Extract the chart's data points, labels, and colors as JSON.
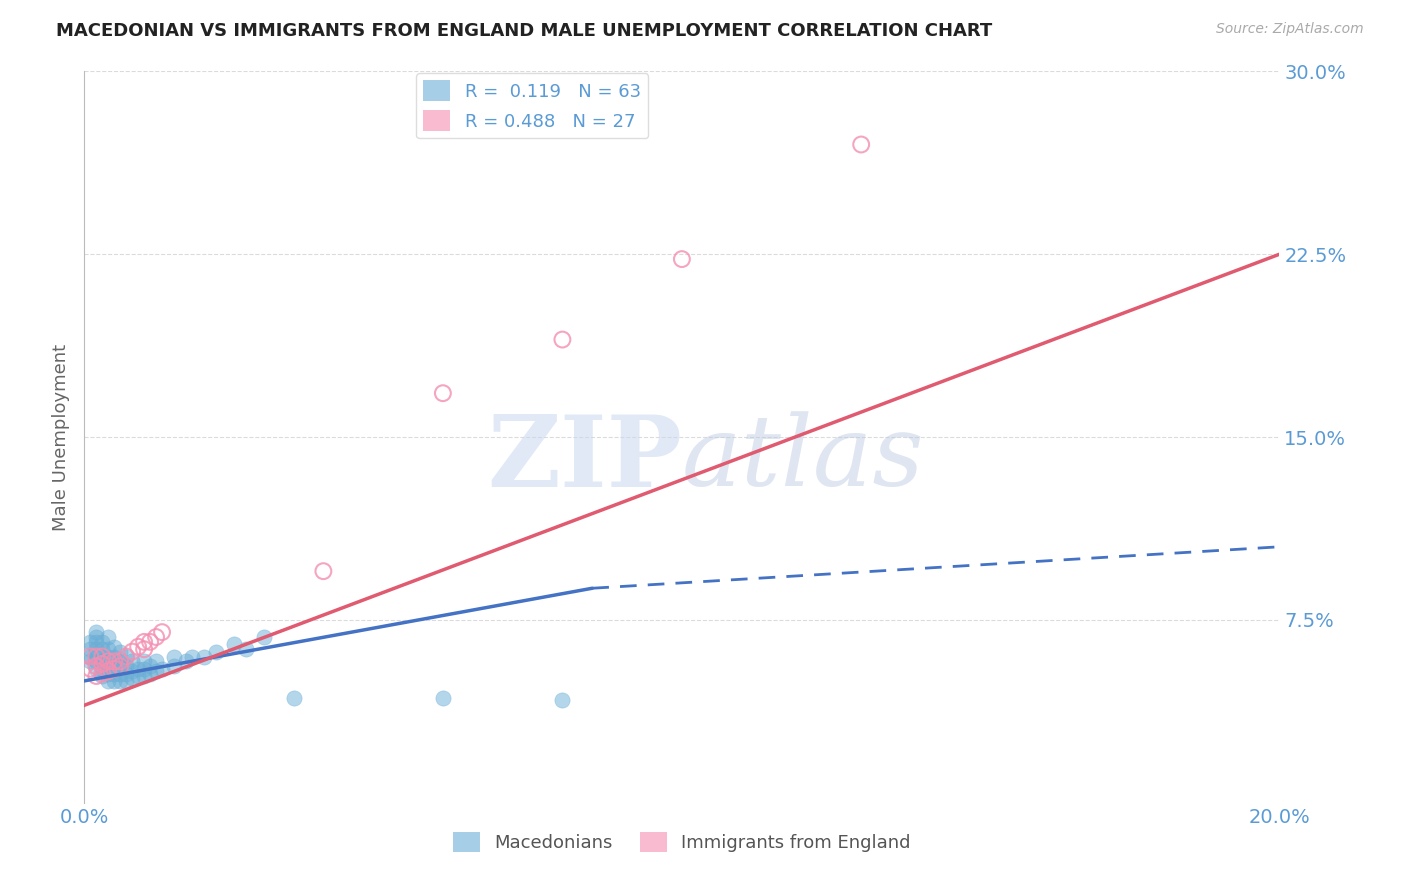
{
  "title": "MACEDONIAN VS IMMIGRANTS FROM ENGLAND MALE UNEMPLOYMENT CORRELATION CHART",
  "source_text": "Source: ZipAtlas.com",
  "ylabel": "Male Unemployment",
  "xlim": [
    0.0,
    0.2
  ],
  "ylim": [
    0.0,
    0.3
  ],
  "macedonian_scatter_color": "#6baed6",
  "england_scatter_color": "#f48fb1",
  "macedonian_line_color": "#4472c4",
  "england_line_color": "#e05a70",
  "title_color": "#222222",
  "axis_label_color": "#5b9bd5",
  "grid_color": "#cccccc",
  "watermark_text": "ZIPAtlas",
  "watermark_color": "#d0dff0",
  "background_color": "#ffffff",
  "macedonian_x": [
    0.001,
    0.001,
    0.001,
    0.001,
    0.002,
    0.002,
    0.002,
    0.002,
    0.002,
    0.002,
    0.002,
    0.003,
    0.003,
    0.003,
    0.003,
    0.003,
    0.003,
    0.004,
    0.004,
    0.004,
    0.004,
    0.004,
    0.004,
    0.005,
    0.005,
    0.005,
    0.005,
    0.005,
    0.005,
    0.006,
    0.006,
    0.006,
    0.006,
    0.006,
    0.007,
    0.007,
    0.007,
    0.007,
    0.008,
    0.008,
    0.008,
    0.009,
    0.009,
    0.01,
    0.01,
    0.01,
    0.011,
    0.011,
    0.012,
    0.012,
    0.013,
    0.015,
    0.015,
    0.017,
    0.018,
    0.02,
    0.022,
    0.025,
    0.027,
    0.03,
    0.035,
    0.06,
    0.08
  ],
  "macedonian_y": [
    0.058,
    0.06,
    0.063,
    0.066,
    0.055,
    0.058,
    0.06,
    0.063,
    0.066,
    0.068,
    0.07,
    0.052,
    0.055,
    0.058,
    0.06,
    0.063,
    0.066,
    0.05,
    0.053,
    0.056,
    0.06,
    0.063,
    0.068,
    0.05,
    0.053,
    0.056,
    0.058,
    0.06,
    0.064,
    0.05,
    0.053,
    0.056,
    0.058,
    0.062,
    0.05,
    0.053,
    0.056,
    0.06,
    0.051,
    0.054,
    0.058,
    0.052,
    0.055,
    0.052,
    0.055,
    0.058,
    0.053,
    0.056,
    0.054,
    0.058,
    0.055,
    0.056,
    0.06,
    0.058,
    0.06,
    0.06,
    0.062,
    0.065,
    0.063,
    0.068,
    0.043,
    0.043,
    0.042
  ],
  "england_x": [
    0.001,
    0.001,
    0.002,
    0.002,
    0.002,
    0.003,
    0.003,
    0.003,
    0.004,
    0.004,
    0.005,
    0.005,
    0.006,
    0.006,
    0.007,
    0.008,
    0.009,
    0.01,
    0.01,
    0.011,
    0.012,
    0.013,
    0.04,
    0.06,
    0.08,
    0.1,
    0.13
  ],
  "england_y": [
    0.055,
    0.06,
    0.052,
    0.056,
    0.06,
    0.053,
    0.057,
    0.06,
    0.054,
    0.058,
    0.055,
    0.058,
    0.056,
    0.058,
    0.06,
    0.062,
    0.064,
    0.063,
    0.066,
    0.066,
    0.068,
    0.07,
    0.095,
    0.168,
    0.19,
    0.223,
    0.27
  ],
  "mac_line_x0": 0.0,
  "mac_line_y0": 0.05,
  "mac_line_x_solid_end": 0.085,
  "mac_line_y_solid_end": 0.088,
  "mac_line_x_dash_end": 0.2,
  "mac_line_y_dash_end": 0.105,
  "eng_line_x0": 0.0,
  "eng_line_y0": 0.04,
  "eng_line_x1": 0.2,
  "eng_line_y1": 0.225
}
